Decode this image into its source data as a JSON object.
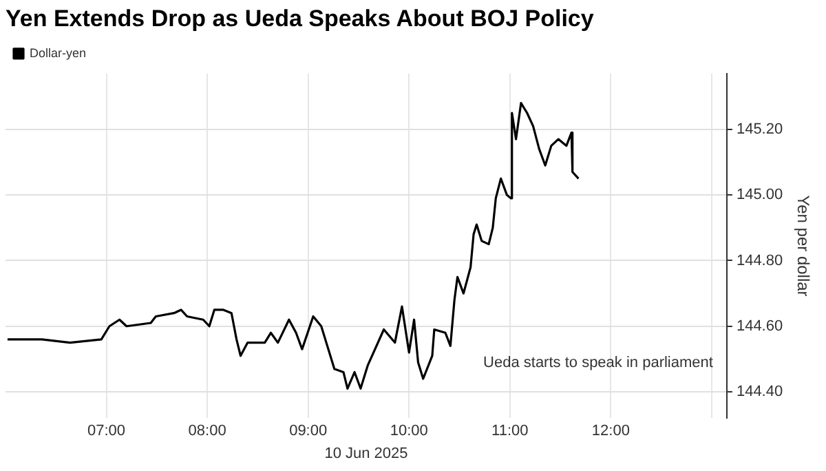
{
  "chart_data": {
    "type": "line",
    "title": "Yen Extends Drop as Ueda Speaks About BOJ Policy",
    "xlabel": "10 Jun 2025",
    "ylabel": "Yen per dollar",
    "annotations": [
      "Ueda starts to speak in parliament"
    ],
    "x": [
      6.02,
      6.36,
      6.64,
      6.95,
      7.03,
      7.13,
      7.2,
      7.44,
      7.49,
      7.67,
      7.74,
      7.8,
      7.96,
      8.02,
      8.07,
      8.16,
      8.24,
      8.29,
      8.33,
      8.4,
      8.57,
      8.63,
      8.7,
      8.81,
      8.88,
      8.94,
      9.05,
      9.13,
      9.19,
      9.26,
      9.35,
      9.39,
      9.46,
      9.52,
      9.59,
      9.75,
      9.86,
      9.93,
      10.0,
      10.05,
      10.09,
      10.14,
      10.23,
      10.25,
      10.36,
      10.41,
      10.45,
      10.48,
      10.54,
      10.61,
      10.64,
      10.67,
      10.72,
      10.79,
      10.83,
      10.86,
      10.91,
      10.97,
      11.01,
      11.02,
      11.06,
      11.11,
      11.17,
      11.23,
      11.29,
      11.35,
      11.41,
      11.48,
      11.56,
      11.61,
      11.62,
      11.68
    ],
    "series": [
      {
        "name": "Dollar-yen",
        "color": "#000000",
        "values": [
          144.56,
          144.56,
          144.55,
          144.56,
          144.6,
          144.62,
          144.6,
          144.61,
          144.63,
          144.64,
          144.65,
          144.63,
          144.62,
          144.6,
          144.65,
          144.65,
          144.64,
          144.56,
          144.51,
          144.55,
          144.55,
          144.58,
          144.55,
          144.62,
          144.58,
          144.53,
          144.63,
          144.6,
          144.54,
          144.47,
          144.46,
          144.41,
          144.46,
          144.41,
          144.48,
          144.59,
          144.55,
          144.66,
          144.52,
          144.62,
          144.49,
          144.44,
          144.51,
          144.59,
          144.58,
          144.54,
          144.68,
          144.75,
          144.7,
          144.78,
          144.88,
          144.91,
          144.86,
          144.85,
          144.9,
          144.99,
          145.05,
          145.0,
          144.99,
          145.25,
          145.17,
          145.28,
          145.25,
          145.21,
          145.14,
          145.09,
          145.15,
          145.17,
          145.15,
          145.19,
          145.07,
          145.05
        ]
      }
    ],
    "xlim": [
      6.0,
      13.15
    ],
    "xticks": [
      {
        "value": 7,
        "label": "07:00"
      },
      {
        "value": 8,
        "label": "08:00"
      },
      {
        "value": 9,
        "label": "09:00"
      },
      {
        "value": 10,
        "label": "10:00"
      },
      {
        "value": 11,
        "label": "11:00"
      },
      {
        "value": 12,
        "label": "12:00"
      },
      {
        "value": 13,
        "label": null
      }
    ],
    "ylim": [
      144.32,
      145.37
    ],
    "yticks": [
      {
        "value": 144.4,
        "label": "144.40"
      },
      {
        "value": 144.6,
        "label": "144.60"
      },
      {
        "value": 144.8,
        "label": "144.80"
      },
      {
        "value": 145.0,
        "label": "145.00"
      },
      {
        "value": 145.2,
        "label": "145.20"
      }
    ],
    "grid": true,
    "legend": "top left",
    "marker": "none",
    "line_style": "solid"
  }
}
